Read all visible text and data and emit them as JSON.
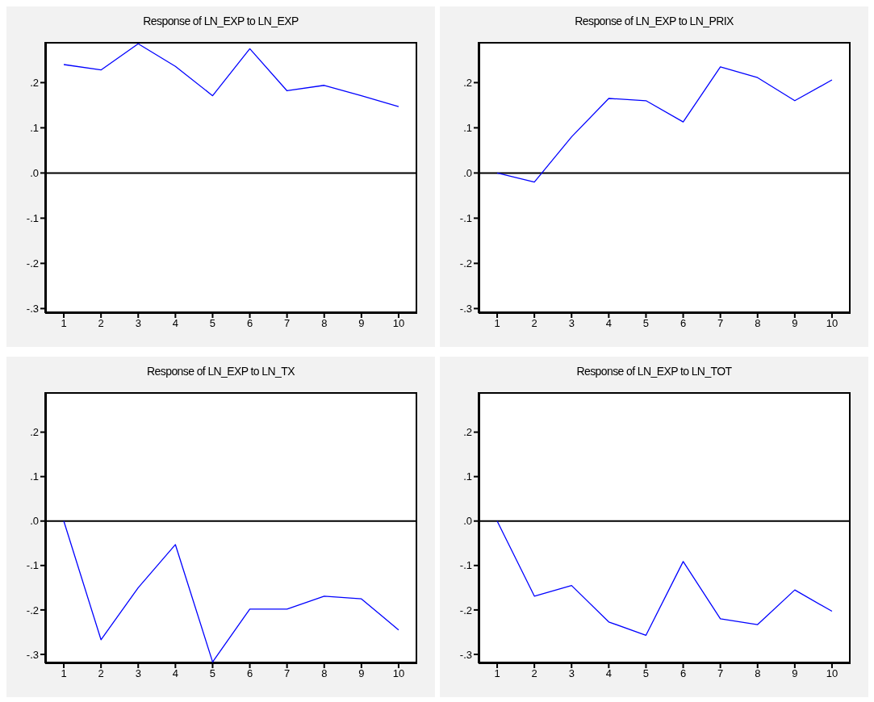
{
  "chart_data": [
    {
      "type": "line",
      "title": "Response of LN_EXP to LN_EXP",
      "categories": [
        "1",
        "2",
        "3",
        "4",
        "5",
        "6",
        "7",
        "8",
        "9",
        "10"
      ],
      "series": [
        {
          "color": "#0000ff",
          "values": [
            0.24,
            0.228,
            0.286,
            0.236,
            0.171,
            0.275,
            0.182,
            0.194,
            0.171,
            0.147
          ]
        }
      ],
      "ylim": [
        -0.31,
        0.29
      ],
      "yticks": [
        {
          "value": -0.3,
          "label": "-.3"
        },
        {
          "value": -0.2,
          "label": "-.2"
        },
        {
          "value": -0.1,
          "label": "-.1"
        },
        {
          "value": 0,
          "label": ".0"
        },
        {
          "value": 0.1,
          "label": ".1"
        },
        {
          "value": 0.2,
          "label": ".2"
        }
      ],
      "ref_lines": [
        {
          "axis": "y",
          "value": 0,
          "color": "#000000"
        }
      ]
    },
    {
      "type": "line",
      "title": "Response of LN_EXP to LN_PRIX",
      "categories": [
        "1",
        "2",
        "3",
        "4",
        "5",
        "6",
        "7",
        "8",
        "9",
        "10"
      ],
      "series": [
        {
          "color": "#0000ff",
          "values": [
            0,
            -0.02,
            0.08,
            0.165,
            0.16,
            0.113,
            0.235,
            0.211,
            0.16,
            0.206
          ]
        }
      ],
      "ylim": [
        -0.31,
        0.29
      ],
      "yticks": [
        {
          "value": -0.3,
          "label": "-.3"
        },
        {
          "value": -0.2,
          "label": "-.2"
        },
        {
          "value": -0.1,
          "label": "-.1"
        },
        {
          "value": 0,
          "label": ".0"
        },
        {
          "value": 0.1,
          "label": ".1"
        },
        {
          "value": 0.2,
          "label": ".2"
        }
      ],
      "ref_lines": [
        {
          "axis": "y",
          "value": 0,
          "color": "#000000"
        }
      ]
    },
    {
      "type": "line",
      "title": "Response of LN_EXP to LN_TX",
      "categories": [
        "1",
        "2",
        "3",
        "4",
        "5",
        "6",
        "7",
        "8",
        "9",
        "10"
      ],
      "series": [
        {
          "color": "#0000ff",
          "values": [
            0,
            -0.267,
            -0.15,
            -0.053,
            -0.317,
            -0.198,
            -0.198,
            -0.169,
            -0.175,
            -0.245
          ]
        }
      ],
      "ylim": [
        -0.32,
        0.29
      ],
      "yticks": [
        {
          "value": -0.3,
          "label": "-.3"
        },
        {
          "value": -0.2,
          "label": "-.2"
        },
        {
          "value": -0.1,
          "label": "-.1"
        },
        {
          "value": 0,
          "label": ".0"
        },
        {
          "value": 0.1,
          "label": ".1"
        },
        {
          "value": 0.2,
          "label": ".2"
        }
      ],
      "ref_lines": [
        {
          "axis": "y",
          "value": 0,
          "color": "#000000"
        }
      ]
    },
    {
      "type": "line",
      "title": "Response of LN_EXP to LN_TOT",
      "categories": [
        "1",
        "2",
        "3",
        "4",
        "5",
        "6",
        "7",
        "8",
        "9",
        "10"
      ],
      "series": [
        {
          "color": "#0000ff",
          "values": [
            0,
            -0.169,
            -0.145,
            -0.227,
            -0.257,
            -0.091,
            -0.22,
            -0.233,
            -0.155,
            -0.203
          ]
        }
      ],
      "ylim": [
        -0.32,
        0.29
      ],
      "yticks": [
        {
          "value": -0.3,
          "label": "-.3"
        },
        {
          "value": -0.2,
          "label": "-.2"
        },
        {
          "value": -0.1,
          "label": "-.1"
        },
        {
          "value": 0,
          "label": ".0"
        },
        {
          "value": 0.1,
          "label": ".1"
        },
        {
          "value": 0.2,
          "label": ".2"
        }
      ],
      "ref_lines": [
        {
          "axis": "y",
          "value": 0,
          "color": "#000000"
        }
      ]
    }
  ]
}
